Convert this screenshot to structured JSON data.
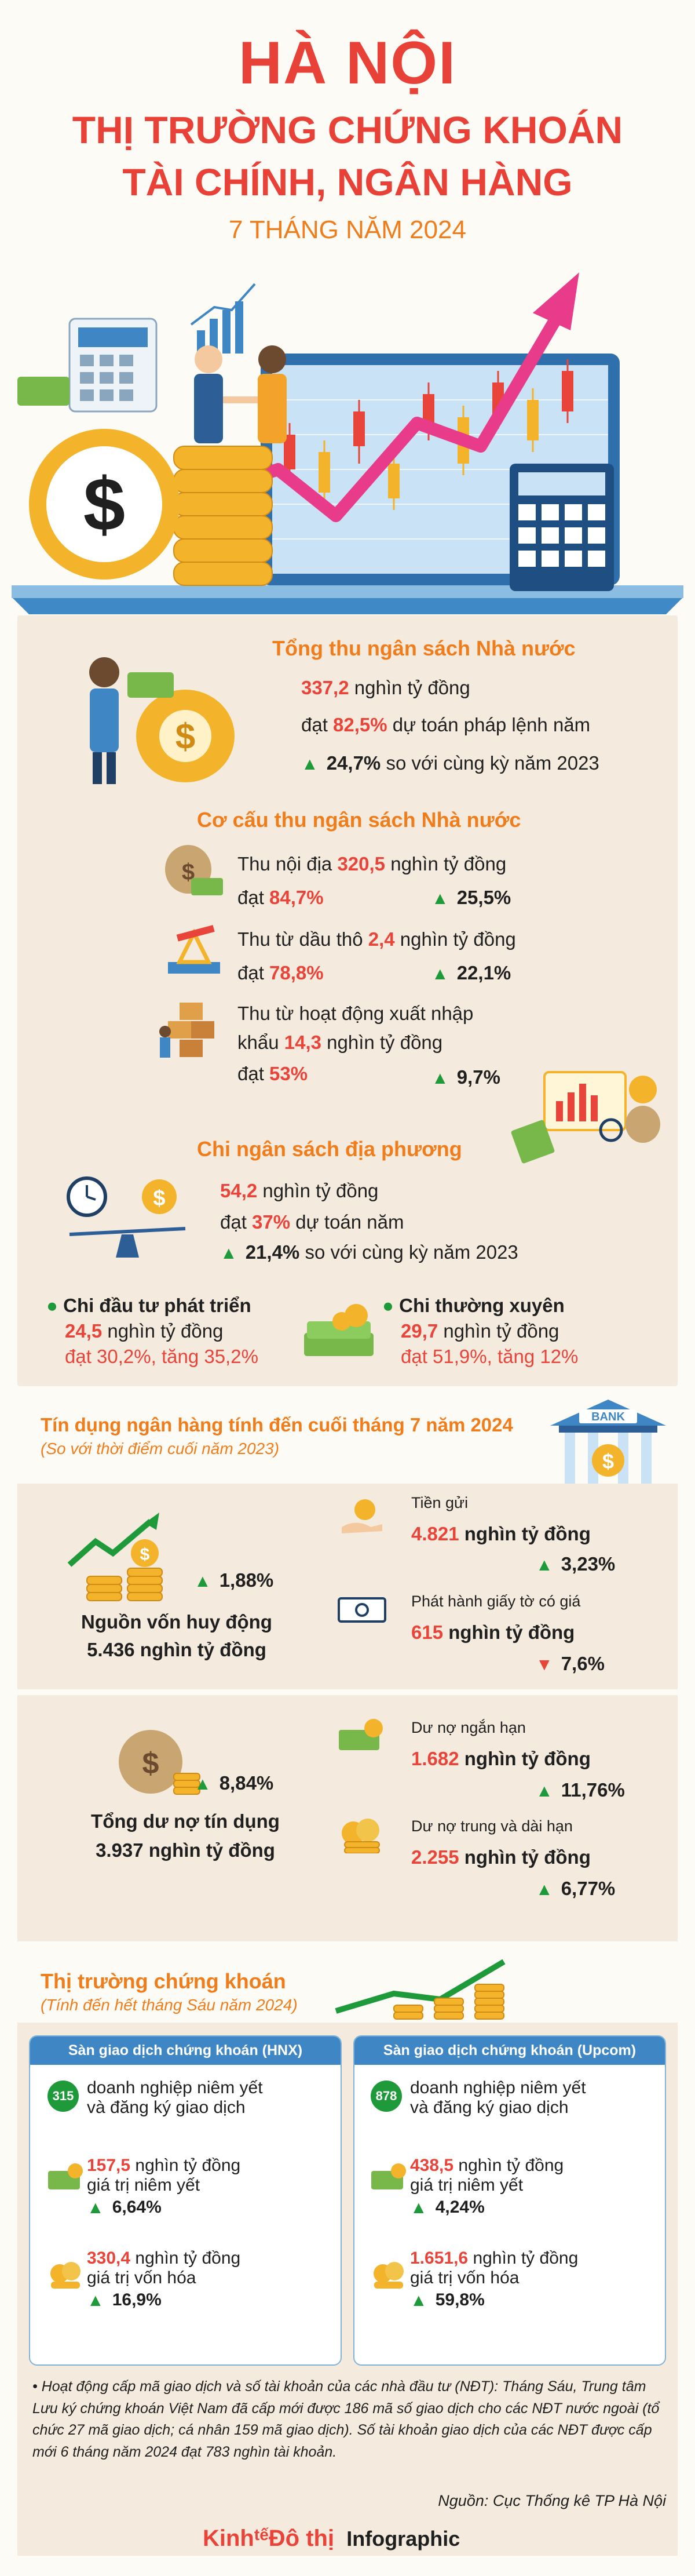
{
  "header": {
    "title_line1": "HÀ NỘI",
    "title_line2": "THỊ TRƯỜNG CHỨNG KHOÁN",
    "title_line3": "TÀI CHÍNH, NGÂN HÀNG",
    "subtitle": "7 THÁNG NĂM 2024"
  },
  "budget": {
    "title": "Tổng thu ngân sách Nhà nước",
    "amount": "337,2",
    "amount_unit": "nghìn tỷ đồng",
    "reach_prefix": "đạt",
    "reach_pct": "82,5%",
    "reach_suffix": "dự toán pháp lệnh năm",
    "growth_pct": "24,7%",
    "growth_suffix": "so với cùng kỳ năm 2023"
  },
  "structure": {
    "title": "Cơ cấu thu ngân sách Nhà nước",
    "domestic_label": "Thu nội địa",
    "domestic_value": "320,5",
    "domestic_unit": "nghìn tỷ đồng",
    "domestic_reach": "đạt",
    "domestic_reach_pct": "84,7%",
    "domestic_growth": "25,5%",
    "oil_label": "Thu từ dầu thô",
    "oil_value": "2,4",
    "oil_unit": "nghìn tỷ đồng",
    "oil_reach": "đạt",
    "oil_reach_pct": "78,8%",
    "oil_growth": "22,1%",
    "trade_label_1": "Thu từ hoạt động xuất nhập",
    "trade_label_2": "khẩu",
    "trade_value": "14,3",
    "trade_unit": "nghìn tỷ đồng",
    "trade_reach": "đạt",
    "trade_reach_pct": "53%",
    "trade_growth": "9,7%"
  },
  "spending": {
    "title": "Chi ngân sách địa phương",
    "amount": "54,2",
    "amount_unit": "nghìn tỷ đồng",
    "reach_prefix": "đạt",
    "reach_pct": "37%",
    "reach_suffix": "dự toán năm",
    "growth_pct": "21,4%",
    "growth_suffix": "so với cùng kỳ năm 2023",
    "invest_label": "Chi đầu tư phát triển",
    "invest_value": "24,5",
    "invest_unit": "nghìn tỷ đồng",
    "invest_detail": "đạt 30,2%, tăng 35,2%",
    "regular_label": "Chi thường xuyên",
    "regular_value": "29,7",
    "regular_unit": "nghìn tỷ đồng",
    "regular_detail": "đạt 51,9%, tăng 12%"
  },
  "credit": {
    "title": "Tín dụng ngân hàng tính đến cuối tháng 7 năm 2024",
    "subtitle": "(So với thời điểm cuối năm 2023)",
    "bank_sign": "BANK",
    "funding_pct": "1,88%",
    "funding_label": "Nguồn vốn huy động",
    "funding_value": "5.436 nghìn tỷ đồng",
    "deposit_label": "Tiền gửi",
    "deposit_value": "4.821",
    "deposit_unit": "nghìn tỷ đồng",
    "deposit_pct": "3,23%",
    "papers_label": "Phát hành giấy tờ có giá",
    "papers_value": "615",
    "papers_unit": "nghìn tỷ đồng",
    "papers_pct": "7,6%",
    "loans_pct": "8,84%",
    "loans_label": "Tổng dư nợ tín dụng",
    "loans_value": "3.937 nghìn tỷ đồng",
    "short_label": "Dư nợ ngắn hạn",
    "short_value": "1.682",
    "short_unit": "nghìn tỷ đồng",
    "short_pct": "11,76%",
    "long_label": "Dư nợ trung và dài hạn",
    "long_value": "2.255",
    "long_unit": "nghìn tỷ đồng",
    "long_pct": "6,77%"
  },
  "stock": {
    "title": "Thị trường chứng khoán",
    "subtitle": "(Tính đến hết tháng Sáu năm 2024)",
    "hnx": {
      "head": "Sàn giao dịch chứng khoán (HNX)",
      "count": "315",
      "count_text_1": "doanh nghiệp niêm yết",
      "count_text_2": "và đăng ký giao dịch",
      "listed_value": "157,5",
      "listed_unit": "nghìn tỷ đồng",
      "listed_label": "giá trị niêm yết",
      "listed_pct": "6,64%",
      "cap_value": "330,4",
      "cap_unit": "nghìn tỷ đồng",
      "cap_label": "giá trị vốn hóa",
      "cap_pct": "16,9%"
    },
    "upcom": {
      "head": "Sàn giao dịch chứng khoán (Upcom)",
      "count": "878",
      "count_text_1": "doanh nghiệp niêm yết",
      "count_text_2": "và đăng ký giao dịch",
      "listed_value": "438,5",
      "listed_unit": "nghìn tỷ đồng",
      "listed_label": "giá trị niêm yết",
      "listed_pct": "4,24%",
      "cap_value": "1.651,6",
      "cap_unit": "nghìn tỷ đồng",
      "cap_label": "giá trị vốn hóa",
      "cap_pct": "59,8%"
    }
  },
  "footnote": "Hoạt động cấp mã giao dịch và số tài khoản của các nhà đầu tư (NĐT): Tháng Sáu, Trung tâm Lưu ký chứng khoán Việt Nam đã cấp mới được 186 mã số giao dịch cho các NĐT nước ngoài (tổ chức 27 mã giao dịch; cá nhân 159 mã giao dịch). Số tài khoản giao dịch của các NĐT được cấp mới 6 tháng năm 2024 đạt 783 nghìn tài khoản.",
  "source": "Nguồn: Cục Thống kê TP Hà Nội",
  "brand": {
    "name_part1": "Kinh",
    "name_part2": "tế",
    "name_part3": "Đô thị",
    "suffix": "Infographic"
  },
  "colors": {
    "accent_red": "#e84238",
    "accent_orange": "#f07d1c",
    "accent_green": "#1f9a3a",
    "card_blue": "#3f87c4",
    "panel_beige": "#f4ebde"
  }
}
